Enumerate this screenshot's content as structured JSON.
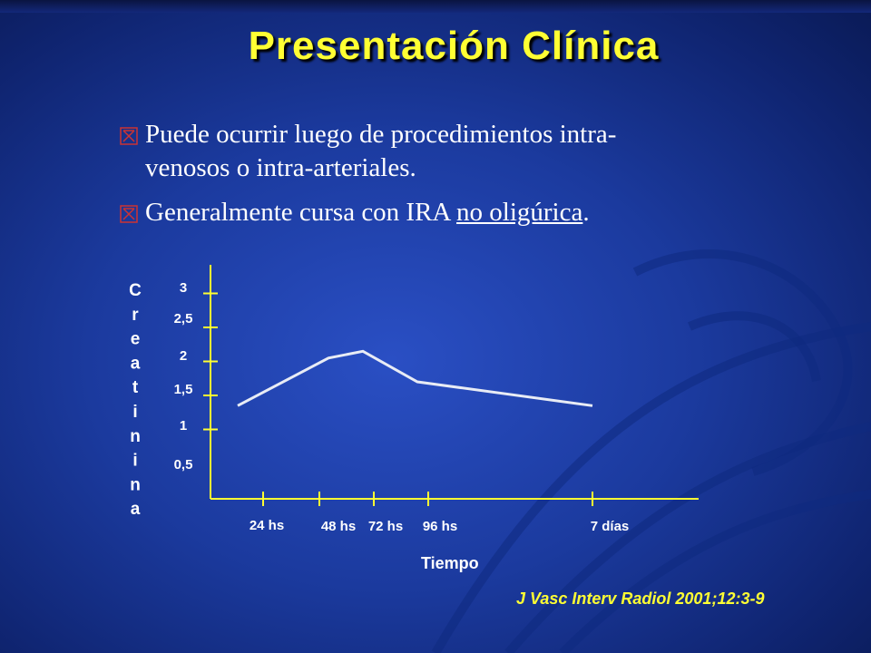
{
  "slide": {
    "title": "Presentación Clínica",
    "bullets": [
      {
        "text": "Puede ocurrir luego de procedimientos intra-venosos o intra-arteriales.",
        "line1": "Puede ocurrir luego de procedimientos intra-",
        "line2": "venosos o intra-arteriales."
      },
      {
        "prefix": "Generalmente cursa con IRA ",
        "underlined": "no oligúrica",
        "suffix": "."
      }
    ],
    "citation": "J Vasc Interv Radiol 2001;12:3-9",
    "colors": {
      "title": "#ffff33",
      "axis": "#ffff33",
      "line": "#e8ecf5",
      "background": "#1b3a9e"
    },
    "bullet_icon": "boxed-x-icon"
  },
  "chart_data": {
    "type": "line",
    "ylabel": "Creatinina",
    "xlabel": "Tiempo",
    "y_ticks": [
      "0,5",
      "1",
      "1,5",
      "2",
      "2,5",
      "3"
    ],
    "x_ticks": [
      "24 hs",
      "48 hs",
      "72 hs",
      "96 hs",
      "7 días"
    ],
    "series": [
      {
        "x": [
          24,
          48,
          72,
          96,
          168
        ],
        "y": [
          1.35,
          2.05,
          2.15,
          1.7,
          1.35
        ]
      }
    ]
  }
}
